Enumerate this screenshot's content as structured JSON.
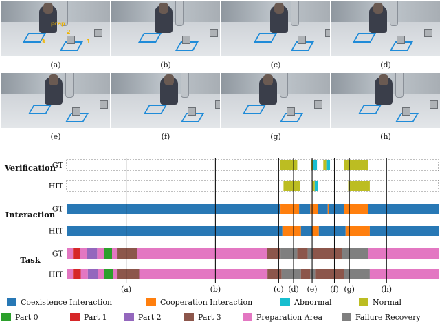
{
  "frames": [
    {
      "label": "(a)"
    },
    {
      "label": "(b)"
    },
    {
      "label": "(c)"
    },
    {
      "label": "(d)"
    },
    {
      "label": "(e)"
    },
    {
      "label": "(f)"
    },
    {
      "label": "(g)"
    },
    {
      "label": "(h)"
    }
  ],
  "frame_a_annotations": {
    "prep": "prep",
    "n1": "1",
    "n2": "2",
    "n3": "3"
  },
  "groups": {
    "verification": "Verification",
    "interaction": "Interaction",
    "task": "Task"
  },
  "row_labels": {
    "gt": "GT",
    "hit": "HIT"
  },
  "marker_labels": [
    "(a)",
    "(b)",
    "(c)",
    "(d)",
    "(e)",
    "(f)",
    "(g)",
    "(h)"
  ],
  "colors": {
    "coexistence": "#2878b5",
    "cooperation": "#ff7f0e",
    "abnormal": "#17becf",
    "normal": "#bcbd22",
    "part0": "#2ca02c",
    "part1": "#d62728",
    "part2": "#9467bd",
    "part3": "#8c564b",
    "prep": "#e377c2",
    "failure": "#7f7f7f"
  },
  "legend": [
    {
      "key": "coexistence",
      "label": "Coexistence Interaction"
    },
    {
      "key": "cooperation",
      "label": "Cooperation Interaction"
    },
    {
      "key": "abnormal",
      "label": "Abnormal"
    },
    {
      "key": "normal",
      "label": "Normal"
    },
    {
      "key": "part0",
      "label": "Part 0"
    },
    {
      "key": "part1",
      "label": "Part 1"
    },
    {
      "key": "part2",
      "label": "Part 2"
    },
    {
      "key": "part3",
      "label": "Part 3"
    },
    {
      "key": "prep",
      "label": "Preparation Area"
    },
    {
      "key": "failure",
      "label": "Failure Recovery"
    }
  ],
  "timeline": {
    "markers": [
      0.16,
      0.4,
      0.57,
      0.61,
      0.66,
      0.72,
      0.76,
      0.86
    ],
    "verification_gt": [
      {
        "start": 0.573,
        "end": 0.62,
        "key": "normal"
      },
      {
        "start": 0.657,
        "end": 0.663,
        "key": "normal"
      },
      {
        "start": 0.663,
        "end": 0.673,
        "key": "abnormal"
      },
      {
        "start": 0.69,
        "end": 0.698,
        "key": "normal"
      },
      {
        "start": 0.698,
        "end": 0.708,
        "key": "abnormal"
      },
      {
        "start": 0.745,
        "end": 0.81,
        "key": "normal"
      }
    ],
    "verification_hit": [
      {
        "start": 0.583,
        "end": 0.628,
        "key": "normal"
      },
      {
        "start": 0.661,
        "end": 0.667,
        "key": "normal"
      },
      {
        "start": 0.667,
        "end": 0.675,
        "key": "abnormal"
      },
      {
        "start": 0.757,
        "end": 0.815,
        "key": "normal"
      }
    ],
    "interaction_gt": [
      {
        "start": 0.0,
        "end": 0.575,
        "key": "coexistence"
      },
      {
        "start": 0.575,
        "end": 0.625,
        "key": "cooperation"
      },
      {
        "start": 0.625,
        "end": 0.655,
        "key": "coexistence"
      },
      {
        "start": 0.655,
        "end": 0.675,
        "key": "cooperation"
      },
      {
        "start": 0.675,
        "end": 0.702,
        "key": "coexistence"
      },
      {
        "start": 0.702,
        "end": 0.706,
        "key": "cooperation"
      },
      {
        "start": 0.706,
        "end": 0.745,
        "key": "coexistence"
      },
      {
        "start": 0.745,
        "end": 0.81,
        "key": "cooperation"
      },
      {
        "start": 0.81,
        "end": 1.0,
        "key": "coexistence"
      }
    ],
    "interaction_hit": [
      {
        "start": 0.0,
        "end": 0.58,
        "key": "coexistence"
      },
      {
        "start": 0.58,
        "end": 0.63,
        "key": "cooperation"
      },
      {
        "start": 0.63,
        "end": 0.66,
        "key": "coexistence"
      },
      {
        "start": 0.66,
        "end": 0.678,
        "key": "cooperation"
      },
      {
        "start": 0.678,
        "end": 0.75,
        "key": "coexistence"
      },
      {
        "start": 0.75,
        "end": 0.815,
        "key": "cooperation"
      },
      {
        "start": 0.815,
        "end": 1.0,
        "key": "coexistence"
      }
    ],
    "task_gt": [
      {
        "start": 0.0,
        "end": 0.017,
        "key": "prep"
      },
      {
        "start": 0.017,
        "end": 0.036,
        "key": "part1"
      },
      {
        "start": 0.036,
        "end": 0.055,
        "key": "prep"
      },
      {
        "start": 0.055,
        "end": 0.082,
        "key": "part2"
      },
      {
        "start": 0.082,
        "end": 0.1,
        "key": "prep"
      },
      {
        "start": 0.1,
        "end": 0.122,
        "key": "part0"
      },
      {
        "start": 0.122,
        "end": 0.135,
        "key": "prep"
      },
      {
        "start": 0.135,
        "end": 0.19,
        "key": "part3"
      },
      {
        "start": 0.19,
        "end": 0.538,
        "key": "prep"
      },
      {
        "start": 0.538,
        "end": 0.575,
        "key": "part3"
      },
      {
        "start": 0.575,
        "end": 0.62,
        "key": "failure"
      },
      {
        "start": 0.62,
        "end": 0.648,
        "key": "part3"
      },
      {
        "start": 0.648,
        "end": 0.662,
        "key": "failure"
      },
      {
        "start": 0.662,
        "end": 0.74,
        "key": "part3"
      },
      {
        "start": 0.74,
        "end": 0.81,
        "key": "failure"
      },
      {
        "start": 0.81,
        "end": 1.0,
        "key": "prep"
      }
    ],
    "task_hit": [
      {
        "start": 0.0,
        "end": 0.017,
        "key": "prep"
      },
      {
        "start": 0.017,
        "end": 0.038,
        "key": "part1"
      },
      {
        "start": 0.038,
        "end": 0.057,
        "key": "prep"
      },
      {
        "start": 0.057,
        "end": 0.084,
        "key": "part2"
      },
      {
        "start": 0.084,
        "end": 0.1,
        "key": "prep"
      },
      {
        "start": 0.1,
        "end": 0.124,
        "key": "part0"
      },
      {
        "start": 0.124,
        "end": 0.135,
        "key": "prep"
      },
      {
        "start": 0.135,
        "end": 0.195,
        "key": "part3"
      },
      {
        "start": 0.195,
        "end": 0.54,
        "key": "prep"
      },
      {
        "start": 0.54,
        "end": 0.578,
        "key": "part3"
      },
      {
        "start": 0.578,
        "end": 0.63,
        "key": "failure"
      },
      {
        "start": 0.63,
        "end": 0.655,
        "key": "part3"
      },
      {
        "start": 0.655,
        "end": 0.668,
        "key": "failure"
      },
      {
        "start": 0.668,
        "end": 0.745,
        "key": "part3"
      },
      {
        "start": 0.745,
        "end": 0.815,
        "key": "failure"
      },
      {
        "start": 0.815,
        "end": 1.0,
        "key": "prep"
      }
    ]
  }
}
